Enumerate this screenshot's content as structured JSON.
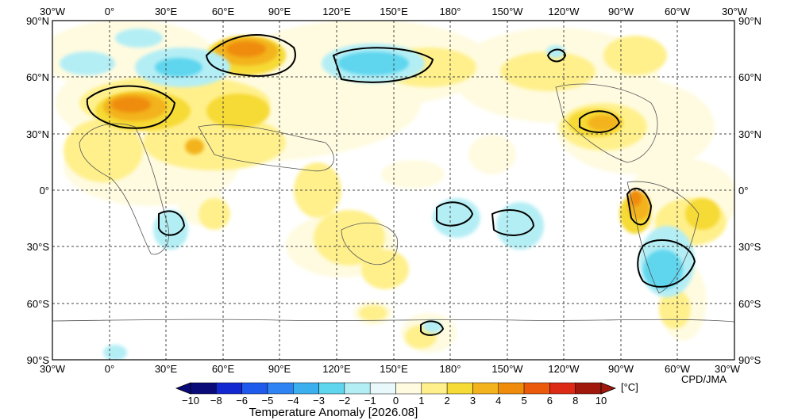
{
  "map": {
    "credit": "CPD/JMA",
    "top_lon_labels": [
      "30°W",
      "0°",
      "30°E",
      "60°E",
      "90°E",
      "120°E",
      "150°E",
      "180°",
      "150°W",
      "120°W",
      "90°W",
      "60°W",
      "30°W"
    ],
    "bottom_lon_labels": [
      "30°W",
      "0°",
      "30°E",
      "60°E",
      "90°E",
      "120°E",
      "150°E",
      "180°",
      "150°W",
      "120°W",
      "90°W",
      "60°W",
      "30°W"
    ],
    "left_lat_labels": [
      "90°N",
      "60°N",
      "30°N",
      "0°",
      "30°S",
      "60°S",
      "90°S"
    ],
    "right_lat_labels": [
      "90°N",
      "60°N",
      "30°N",
      "0°",
      "30°S",
      "60°S",
      "90°S"
    ],
    "legend": {
      "title": "Temperature Anomaly [2026.08]",
      "unit": "[°C]",
      "tick_labels": [
        "−10",
        "−8",
        "−6",
        "−5",
        "−4",
        "−3",
        "−2",
        "−1",
        "0",
        "1",
        "2",
        "3",
        "4",
        "5",
        "6",
        "8",
        "10"
      ],
      "colors": [
        "#0a0a78",
        "#1428d2",
        "#1e5aeb",
        "#2f83f2",
        "#3cb0ef",
        "#5fd6ee",
        "#b4eef5",
        "#e8f8fb",
        "#fffbe0",
        "#fff08c",
        "#f6da35",
        "#f3b31e",
        "#ef8c0c",
        "#ea5a0a",
        "#dc2a14",
        "#a0180c"
      ]
    }
  }
}
